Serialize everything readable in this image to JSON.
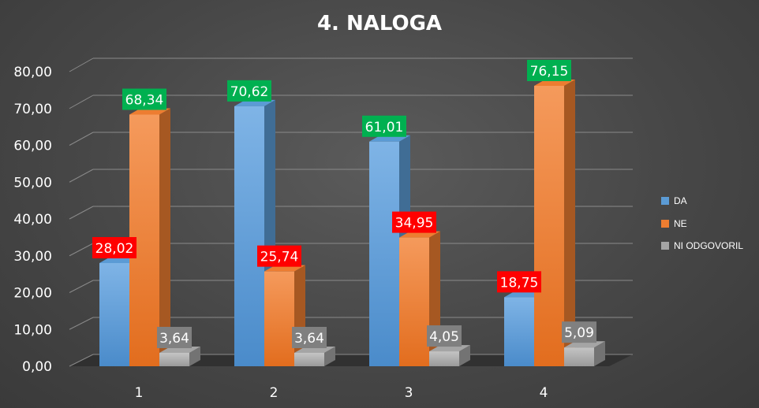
{
  "chart_data": {
    "type": "bar",
    "title": "4. NALOGA",
    "categories": [
      "1",
      "2",
      "3",
      "4"
    ],
    "series": [
      {
        "name": "DA",
        "values": [
          28.02,
          70.62,
          61.01,
          18.75
        ]
      },
      {
        "name": "NE",
        "values": [
          68.34,
          25.74,
          34.95,
          76.15
        ]
      },
      {
        "name": "NI ODGOVORIL",
        "values": [
          3.64,
          3.64,
          4.05,
          5.09
        ]
      }
    ],
    "value_labels": [
      [
        "28,02",
        "70,62",
        "61,01",
        "18,75"
      ],
      [
        "68,34",
        "25,74",
        "34,95",
        "76,15"
      ],
      [
        "3,64",
        "3,64",
        "4,05",
        "5,09"
      ]
    ],
    "y_tick_labels": [
      "0,00",
      "10,00",
      "20,00",
      "30,00",
      "40,00",
      "50,00",
      "60,00",
      "70,00",
      "80,00"
    ],
    "ylim": [
      0,
      80
    ],
    "y_step": 10,
    "grid": true,
    "legend_position": "right",
    "colors": {
      "DA": "#5b9bd5",
      "NE": "#ed7d31",
      "NI ODGOVORIL": "#a5a5a5",
      "label_high": "#00b050",
      "label_low": "#ff0000",
      "label_small": "#808080"
    }
  }
}
